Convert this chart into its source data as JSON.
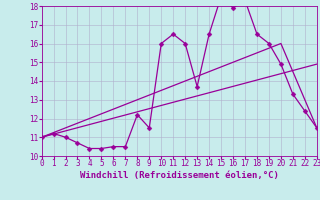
{
  "title": "",
  "xlabel": "Windchill (Refroidissement éolien,°C)",
  "bg_color": "#c8ecec",
  "line_color": "#990099",
  "grid_color": "#b0b0cc",
  "x_min": 0,
  "x_max": 23,
  "y_min": 10,
  "y_max": 18,
  "x_ticks": [
    0,
    1,
    2,
    3,
    4,
    5,
    6,
    7,
    8,
    9,
    10,
    11,
    12,
    13,
    14,
    15,
    16,
    17,
    18,
    19,
    20,
    21,
    22,
    23
  ],
  "y_ticks": [
    10,
    11,
    12,
    13,
    14,
    15,
    16,
    17,
    18
  ],
  "line1_x": [
    0,
    1,
    2,
    3,
    4,
    5,
    6,
    7,
    8,
    9,
    10,
    11,
    12,
    13,
    14,
    15,
    16,
    17,
    18,
    19,
    20,
    21,
    22,
    23
  ],
  "line1_y": [
    11.0,
    11.2,
    11.0,
    10.7,
    10.4,
    10.4,
    10.5,
    10.5,
    12.2,
    11.5,
    16.0,
    16.5,
    16.0,
    13.7,
    16.5,
    18.5,
    17.9,
    18.3,
    16.5,
    16.0,
    14.9,
    13.3,
    12.4,
    11.5
  ],
  "line2_x": [
    0,
    23
  ],
  "line2_y": [
    11.0,
    14.9
  ],
  "line3_x": [
    0,
    20,
    23
  ],
  "line3_y": [
    11.0,
    16.0,
    11.5
  ],
  "markersize": 2.5,
  "linewidth": 0.9,
  "xlabel_fontsize": 6.5,
  "tick_fontsize": 5.5
}
